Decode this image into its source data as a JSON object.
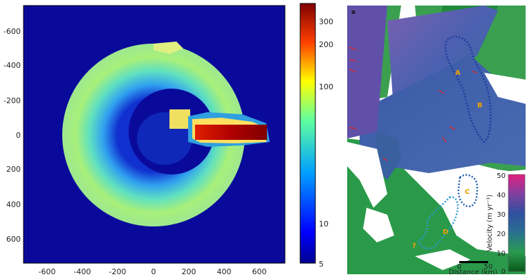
{
  "left_figure": {
    "x_ticks": [
      "-600",
      "-400",
      "-200",
      "0",
      "200",
      "400",
      "600"
    ],
    "y_ticks": [
      "-600",
      "-400",
      "-200",
      "0",
      "200",
      "400",
      "600"
    ],
    "colorbar_ticks": [
      "300",
      "200",
      "100",
      "10",
      "5"
    ],
    "colors": {
      "background": "#0a0a9a",
      "ring": "#9ff09a",
      "stripe": "#b00000"
    }
  },
  "right_figure": {
    "panel_label": "a",
    "sites": [
      "A",
      "B",
      "C",
      "D",
      "?"
    ],
    "scale_bar": {
      "zero": "0",
      "fifty": "50",
      "label": "Distance (km)"
    },
    "legend": {
      "title": "Velocity (m yr⁻¹)",
      "ticks": [
        "50",
        "40",
        "30",
        "20",
        "10",
        "0"
      ]
    }
  }
}
